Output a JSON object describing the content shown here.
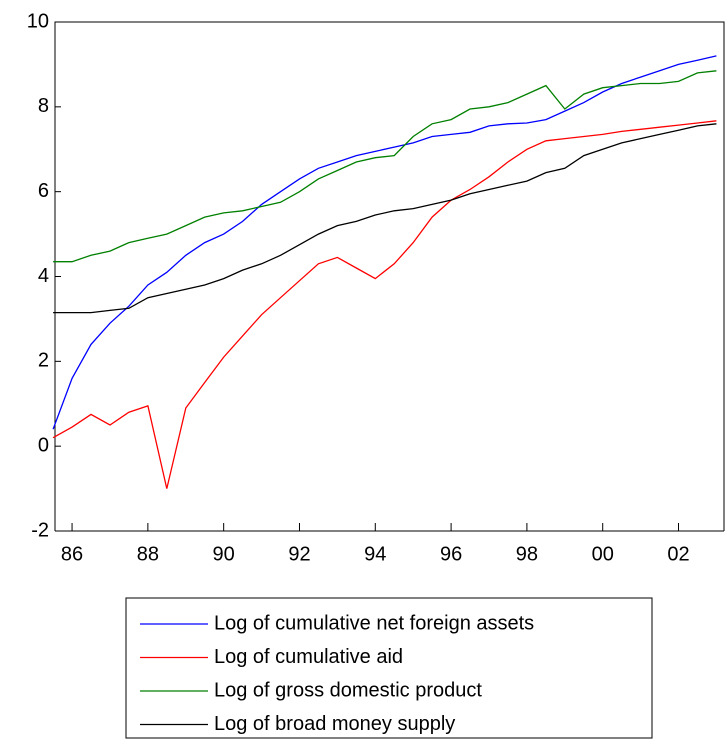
{
  "chart_data": {
    "type": "line",
    "x": [
      1985.5,
      1986,
      1986.5,
      1987,
      1987.5,
      1988,
      1988.5,
      1989,
      1989.5,
      1990,
      1990.5,
      1991,
      1991.5,
      1992,
      1992.5,
      1993,
      1993.5,
      1994,
      1994.5,
      1995,
      1995.5,
      1996,
      1996.5,
      1997,
      1997.5,
      1998,
      1998.5,
      1999,
      1999.5,
      2000,
      2000.5,
      2001,
      2001.5,
      2002,
      2002.5,
      2003
    ],
    "series": [
      {
        "name": "Log of cumulative net foreign assets",
        "color": "#0000ff",
        "values": [
          0.4,
          1.6,
          2.4,
          2.9,
          3.3,
          3.8,
          4.1,
          4.5,
          4.8,
          5.0,
          5.3,
          5.7,
          6.0,
          6.3,
          6.55,
          6.7,
          6.85,
          6.95,
          7.05,
          7.15,
          7.3,
          7.35,
          7.4,
          7.55,
          7.6,
          7.62,
          7.7,
          7.9,
          8.1,
          8.35,
          8.55,
          8.7,
          8.85,
          9.0,
          9.1,
          9.2
        ]
      },
      {
        "name": "Log of cumulative aid",
        "color": "#ff0000",
        "values": [
          0.2,
          0.45,
          0.75,
          0.5,
          0.8,
          0.95,
          -1.0,
          0.9,
          1.5,
          2.1,
          2.6,
          3.1,
          3.5,
          3.9,
          4.3,
          4.45,
          4.2,
          3.95,
          4.3,
          4.8,
          5.4,
          5.8,
          6.05,
          6.35,
          6.7,
          7.0,
          7.2,
          7.25,
          7.3,
          7.35,
          7.42,
          7.47,
          7.52,
          7.57,
          7.62,
          7.67
        ]
      },
      {
        "name": "Log of gross domestic product",
        "color": "#008000",
        "values": [
          4.35,
          4.35,
          4.5,
          4.6,
          4.8,
          4.9,
          5.0,
          5.2,
          5.4,
          5.5,
          5.55,
          5.65,
          5.75,
          6.0,
          6.3,
          6.5,
          6.7,
          6.8,
          6.85,
          7.3,
          7.6,
          7.7,
          7.95,
          8.0,
          8.1,
          8.3,
          8.5,
          7.95,
          8.3,
          8.45,
          8.5,
          8.55,
          8.55,
          8.6,
          8.8,
          8.85
        ]
      },
      {
        "name": "Log of broad money supply",
        "color": "#000000",
        "values": [
          3.15,
          3.15,
          3.15,
          3.2,
          3.25,
          3.5,
          3.6,
          3.7,
          3.8,
          3.95,
          4.15,
          4.3,
          4.5,
          4.75,
          5.0,
          5.2,
          5.3,
          5.45,
          5.55,
          5.6,
          5.7,
          5.8,
          5.95,
          6.05,
          6.15,
          6.25,
          6.45,
          6.55,
          6.85,
          7.0,
          7.15,
          7.25,
          7.35,
          7.45,
          7.55,
          7.6
        ]
      }
    ],
    "xlim": [
      1985.55,
      2003.2
    ],
    "xticks": [
      {
        "value": 1986,
        "label": "86"
      },
      {
        "value": 1988,
        "label": "88"
      },
      {
        "value": 1990,
        "label": "90"
      },
      {
        "value": 1992,
        "label": "92"
      },
      {
        "value": 1994,
        "label": "94"
      },
      {
        "value": 1996,
        "label": "96"
      },
      {
        "value": 1998,
        "label": "98"
      },
      {
        "value": 2000,
        "label": "00"
      },
      {
        "value": 2002,
        "label": "02"
      }
    ],
    "ylim": [
      -2,
      10
    ],
    "yticks": [
      -2,
      0,
      2,
      4,
      6,
      8,
      10
    ],
    "legend": "bottom"
  }
}
